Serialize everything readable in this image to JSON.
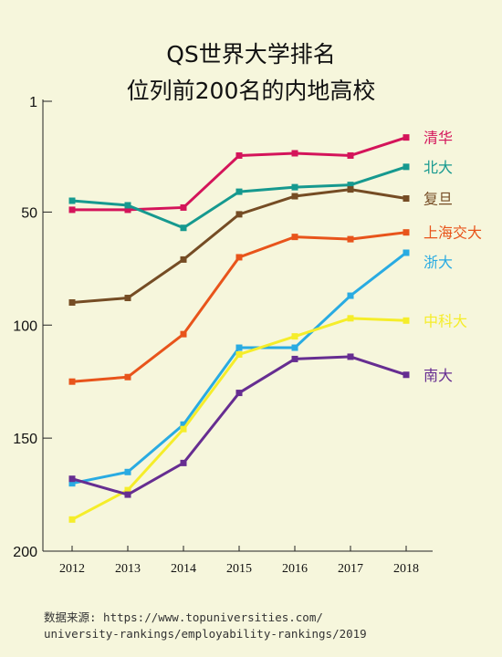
{
  "header": {
    "title": "QS世界大学排名",
    "subtitle": "位列前200名的内地高校"
  },
  "source": {
    "line1": "数据来源: https://www.topuniversities.com/",
    "line2": "university-rankings/employability-rankings/2019"
  },
  "chart_data": {
    "type": "line",
    "title": "QS世界大学排名",
    "subtitle": "位列前200名的内地高校",
    "xlabel": "",
    "ylabel": "",
    "x": [
      "2012",
      "2013",
      "2014",
      "2015",
      "2016",
      "2017",
      "2018"
    ],
    "yticks": [
      1,
      50,
      100,
      150,
      200
    ],
    "ylim": [
      1,
      200
    ],
    "y_inverted": true,
    "grid": false,
    "series": [
      {
        "name": "清华",
        "color": "#d4145a",
        "values": [
          49,
          49,
          48,
          25,
          24,
          25,
          17
        ]
      },
      {
        "name": "北大",
        "color": "#16998f",
        "values": [
          45,
          47,
          57,
          41,
          39,
          38,
          30
        ]
      },
      {
        "name": "复旦",
        "color": "#754c24",
        "values": [
          90,
          88,
          71,
          51,
          43,
          40,
          44
        ]
      },
      {
        "name": "上海交大",
        "color": "#e8541b",
        "values": [
          125,
          123,
          104,
          70,
          61,
          62,
          59
        ]
      },
      {
        "name": "浙大",
        "color": "#29abe2",
        "values": [
          170,
          165,
          144,
          110,
          110,
          87,
          68
        ]
      },
      {
        "name": "中科大",
        "color": "#f5ed2a",
        "values": [
          186,
          173,
          146,
          113,
          105,
          97,
          98
        ]
      },
      {
        "name": "南大",
        "color": "#662d91",
        "values": [
          168,
          175,
          161,
          130,
          115,
          114,
          122
        ]
      }
    ]
  }
}
